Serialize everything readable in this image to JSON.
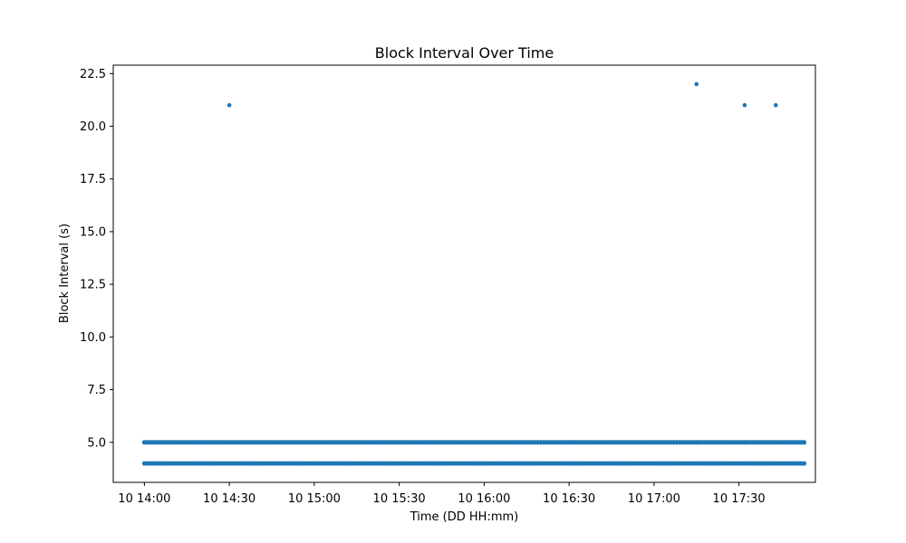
{
  "chart_data": {
    "type": "scatter",
    "title": "Block Interval Over Time",
    "xlabel": "Time (DD HH:mm)",
    "ylabel": "Block Interval (s)",
    "x_ticks": [
      "10 14:00",
      "10 14:30",
      "10 15:00",
      "10 15:30",
      "10 16:00",
      "10 16:30",
      "10 17:00",
      "10 17:30"
    ],
    "y_ticks": [
      "5.0",
      "7.5",
      "10.0",
      "12.5",
      "15.0",
      "17.5",
      "20.0",
      "22.5"
    ],
    "xlim": [
      "10 13:49",
      "10 17:57"
    ],
    "ylim": [
      3.1,
      22.9
    ],
    "grid": false,
    "legend": "none",
    "color": "#1f77b4",
    "dense_series": [
      {
        "y": 4,
        "x_start": "10 14:00",
        "x_end": "10 17:53"
      },
      {
        "y": 5,
        "x_start": "10 14:00",
        "x_end": "10 17:53"
      }
    ],
    "points": [
      {
        "x": "10 14:30",
        "y": 21
      },
      {
        "x": "10 17:15",
        "y": 22
      },
      {
        "x": "10 17:32",
        "y": 21
      },
      {
        "x": "10 17:43",
        "y": 21
      }
    ]
  }
}
